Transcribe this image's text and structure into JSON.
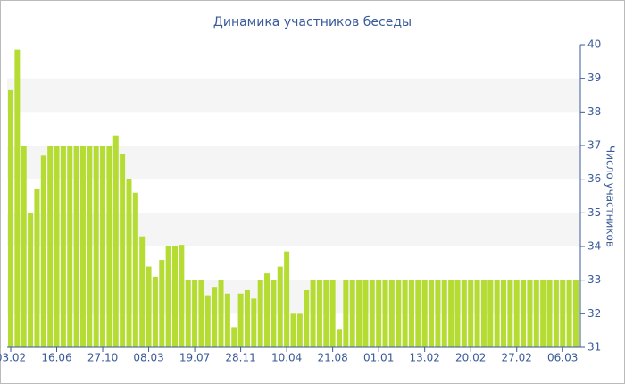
{
  "chart_data": {
    "type": "bar",
    "title": "Динамика участников беседы",
    "y_label": "Число участников",
    "categories": [
      "03.02",
      null,
      null,
      null,
      null,
      null,
      null,
      "16.06",
      null,
      null,
      null,
      null,
      null,
      null,
      "27.10",
      null,
      null,
      null,
      null,
      null,
      null,
      "08.03",
      null,
      null,
      null,
      null,
      null,
      null,
      "19.07",
      null,
      null,
      null,
      null,
      null,
      null,
      "28.11",
      null,
      null,
      null,
      null,
      null,
      null,
      "10.04",
      null,
      null,
      null,
      null,
      null,
      null,
      "21.08",
      null,
      null,
      null,
      null,
      null,
      null,
      "01.01",
      null,
      null,
      null,
      null,
      null,
      null,
      "13.02",
      null,
      null,
      null,
      null,
      null,
      null,
      "20.02",
      null,
      null,
      null,
      null,
      null,
      null,
      "27.02",
      null,
      null,
      null,
      null,
      null,
      null,
      "06.03",
      null,
      null
    ],
    "values": [
      38.65,
      39.85,
      37,
      35,
      35.7,
      36.7,
      37,
      37,
      37,
      37,
      37,
      37,
      37,
      37,
      37,
      37,
      37.3,
      36.75,
      36,
      35.6,
      34.3,
      33.4,
      33.1,
      33.6,
      34,
      34,
      34.05,
      33,
      33,
      33,
      32.55,
      32.8,
      33,
      32.6,
      31.6,
      32.6,
      32.7,
      32.45,
      33,
      33.2,
      33,
      33.4,
      33.85,
      32,
      32,
      32.7,
      33,
      33,
      33,
      33,
      31.55,
      33,
      33,
      33,
      33,
      33,
      33,
      33,
      33,
      33,
      33,
      33,
      33,
      33,
      33,
      33,
      33,
      33,
      33,
      33,
      33,
      33,
      33,
      33,
      33,
      33,
      33,
      33,
      33,
      33,
      33,
      33,
      33,
      33,
      33,
      33,
      33
    ],
    "color": "#b5dc32",
    "ylim": [
      31,
      40
    ],
    "yticks": [
      31,
      32,
      33,
      34,
      35,
      36,
      37,
      38,
      39,
      40
    ],
    "y_axis_side": "right"
  }
}
